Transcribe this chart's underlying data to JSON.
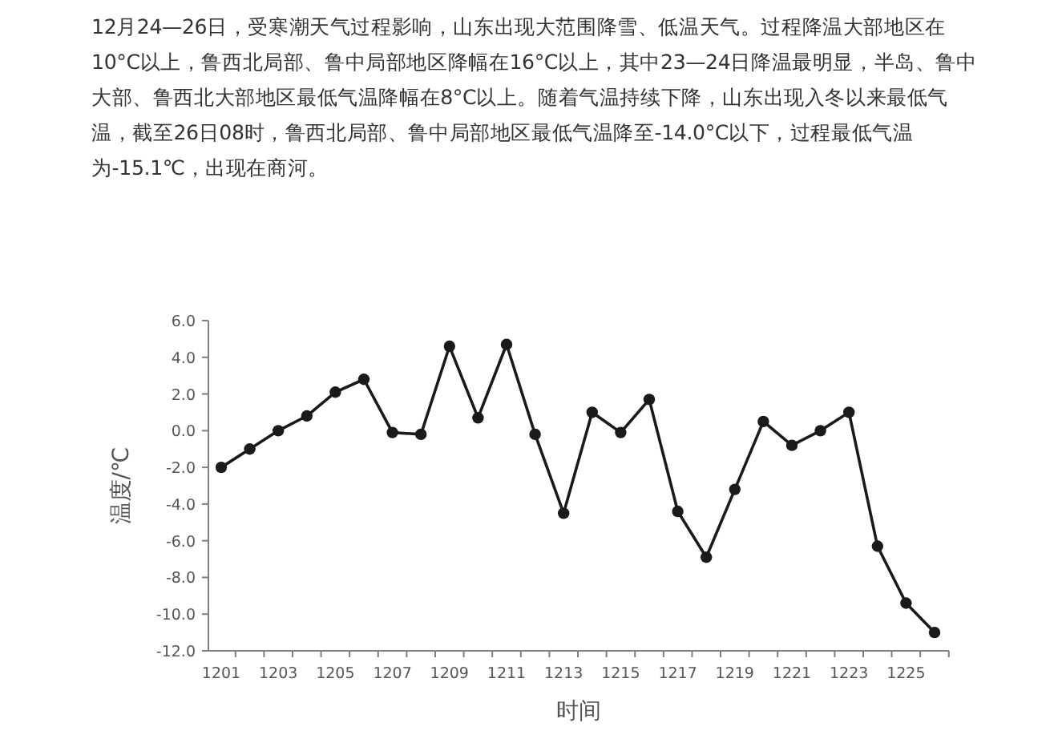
{
  "chart_data": {
    "type": "line",
    "subtitle": "12月24—26日，受寒潮天气过程影响，山东出现大范围降雪、低温天气。过程降温大部地区在10°C以上，鲁西北局部、鲁中局部地区降幅在16°C以上，其中23—24日降温最明显，半岛、鲁中大部、鲁西北大部地区最低气温降幅在8°C以上。随着气温持续下降，山东出现入冬以来最低气温，截至26日08时，鲁西北局部、鲁中局部地区最低气温降至-14.0°C以下，过程最低气温为-15.1℃，出现在商河。",
    "xlabel": "时间",
    "ylabel": "温度/℃",
    "categories": [
      "1201",
      null,
      "1203",
      null,
      "1205",
      null,
      "1207",
      null,
      "1209",
      null,
      "1211",
      null,
      "1213",
      null,
      "1215",
      null,
      "1217",
      null,
      "1219",
      null,
      "1221",
      null,
      "1223",
      null,
      "1225",
      null
    ],
    "series": [
      {
        "color": "#1a1a1a",
        "values": [
          -2.0,
          -1.0,
          0.0,
          0.8,
          2.1,
          2.8,
          -0.1,
          -0.2,
          4.6,
          0.7,
          4.7,
          -0.2,
          -4.5,
          1.0,
          -0.1,
          1.7,
          -4.4,
          -6.9,
          -3.2,
          0.5,
          -0.8,
          0.0,
          1.0,
          -6.3,
          -9.4,
          -11.0
        ]
      }
    ],
    "ylim": [
      -12,
      6
    ],
    "yticks": [
      {
        "value": -12,
        "label": "-12.0"
      },
      {
        "value": -10,
        "label": "-10.0"
      },
      {
        "value": -8,
        "label": "-8.0"
      },
      {
        "value": -6,
        "label": "-6.0"
      },
      {
        "value": -4,
        "label": "-4.0"
      },
      {
        "value": -2,
        "label": "-2.0"
      },
      {
        "value": 0,
        "label": "0.0"
      },
      {
        "value": 2,
        "label": "2.0"
      },
      {
        "value": 4,
        "label": "4.0"
      },
      {
        "value": 6,
        "label": "6.0"
      }
    ],
    "grid": false,
    "marker": "circle",
    "line_style": "solid"
  }
}
